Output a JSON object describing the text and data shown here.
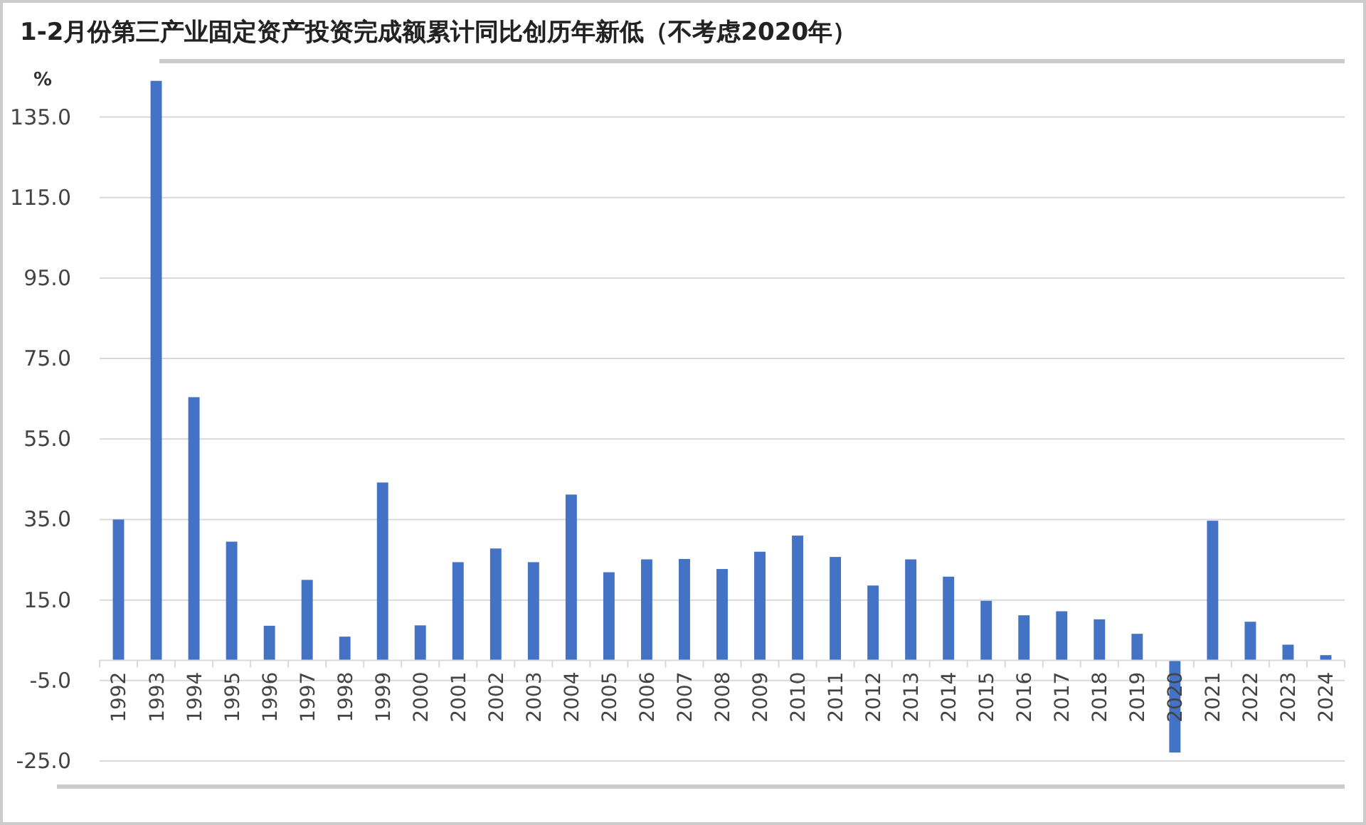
{
  "chart_data": {
    "type": "bar",
    "title": "1-2月份第三产业固定资产投资完成额累计同比创历年新低（不考虑2020年）",
    "ylabel": "%",
    "categories": [
      "1992",
      "1993",
      "1994",
      "1995",
      "1996",
      "1997",
      "1998",
      "1999",
      "2000",
      "2001",
      "2002",
      "2003",
      "2004",
      "2005",
      "2006",
      "2007",
      "2008",
      "2009",
      "2010",
      "2011",
      "2012",
      "2013",
      "2014",
      "2015",
      "2016",
      "2017",
      "2018",
      "2019",
      "2020",
      "2021",
      "2022",
      "2023",
      "2024"
    ],
    "values": [
      35,
      144,
      65.4,
      29.5,
      8.6,
      20,
      5.9,
      44.2,
      8.7,
      24.4,
      27.8,
      24.4,
      41.2,
      21.9,
      25.1,
      25.2,
      22.7,
      27,
      31,
      25.7,
      18.6,
      25.1,
      20.8,
      14.8,
      11.2,
      12.2,
      10.2,
      6.6,
      -22.9,
      34.7,
      9.6,
      3.9,
      1.3
    ],
    "color": "#4472c4",
    "ylim": [
      -25,
      145
    ],
    "yticks": [
      {
        "value": -25,
        "label": "-25.0"
      },
      {
        "value": -5,
        "label": "-5.0"
      },
      {
        "value": 15,
        "label": "15.0"
      },
      {
        "value": 35,
        "label": "35.0"
      },
      {
        "value": 55,
        "label": "55.0"
      },
      {
        "value": 75,
        "label": "75.0"
      },
      {
        "value": 95,
        "label": "95.0"
      },
      {
        "value": 115,
        "label": "115.0"
      },
      {
        "value": 135,
        "label": "135.0"
      }
    ],
    "grid": "y"
  }
}
